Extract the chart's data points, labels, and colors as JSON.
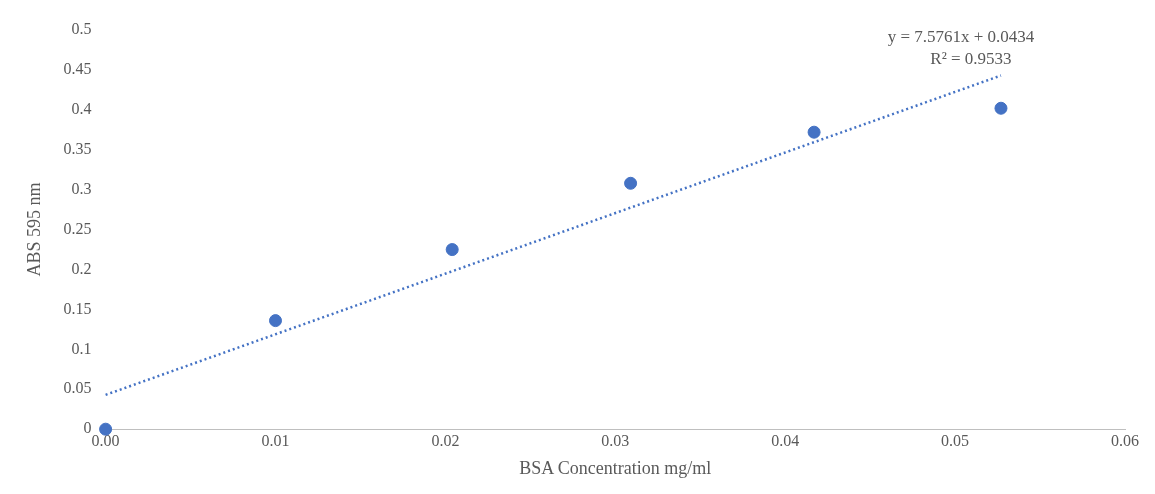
{
  "chart_data": {
    "type": "scatter",
    "xlabel": "BSA Concentration mg/ml",
    "ylabel": "ABS 595 nm",
    "x": [
      0,
      0.01,
      0.0204,
      0.0309,
      0.0417,
      0.0527
    ],
    "series": [
      {
        "type": "scatter",
        "color": "#4472c4",
        "values": [
          0,
          0.136,
          0.225,
          0.308,
          0.372,
          0.402
        ]
      },
      {
        "type": "line",
        "color": "#4472c4",
        "line_style": "dotted",
        "marker": "none",
        "x": [
          0,
          0.0527
        ],
        "values": [
          0.043,
          0.443
        ]
      }
    ],
    "marker": "circle",
    "xlim": [
      0,
      0.06
    ],
    "xticks": [
      {
        "value": 0,
        "label": "0.00"
      },
      {
        "value": 0.01,
        "label": "0.01"
      },
      {
        "value": 0.02,
        "label": "0.02"
      },
      {
        "value": 0.03,
        "label": "0.03"
      },
      {
        "value": 0.04,
        "label": "0.04"
      },
      {
        "value": 0.05,
        "label": "0.05"
      },
      {
        "value": 0.06,
        "label": "0.06"
      }
    ],
    "ylim": [
      0,
      0.5
    ],
    "yticks": [
      0,
      0.05,
      0.1,
      0.15,
      0.2,
      0.25,
      0.3,
      0.35,
      0.4,
      0.45,
      0.5
    ],
    "grid": false,
    "annotations": [
      "y = 7.5761x + 0.0434",
      "R² = 0.9533"
    ]
  }
}
